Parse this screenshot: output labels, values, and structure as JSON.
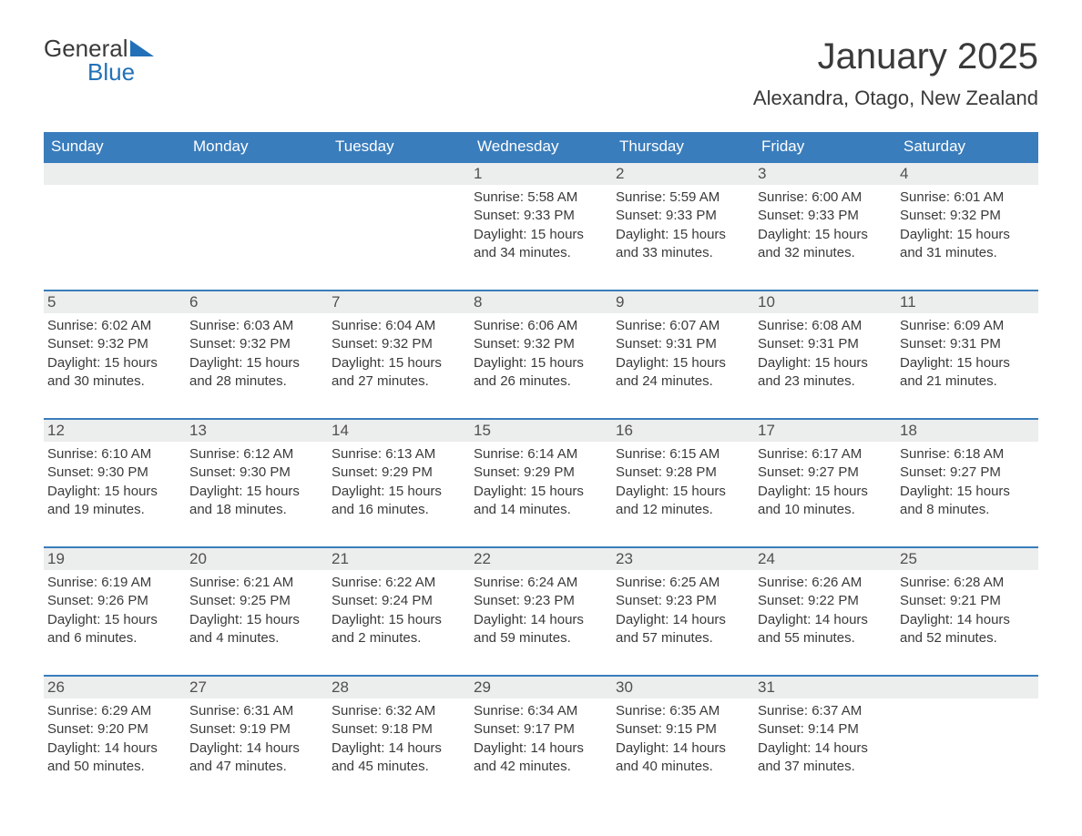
{
  "logo": {
    "line1": "General",
    "line2": "Blue"
  },
  "title": "January 2025",
  "location": "Alexandra, Otago, New Zealand",
  "colors": {
    "header_bg": "#3a7dbc",
    "header_text": "#ffffff",
    "row_stripe": "#eceded",
    "border": "#3a7dbc",
    "text": "#3a3a3a",
    "logo_blue": "#2271b8",
    "background": "#ffffff"
  },
  "weekdays": [
    "Sunday",
    "Monday",
    "Tuesday",
    "Wednesday",
    "Thursday",
    "Friday",
    "Saturday"
  ],
  "weeks": [
    [
      null,
      null,
      null,
      {
        "day": "1",
        "sunrise": "Sunrise: 5:58 AM",
        "sunset": "Sunset: 9:33 PM",
        "daylight1": "Daylight: 15 hours",
        "daylight2": "and 34 minutes."
      },
      {
        "day": "2",
        "sunrise": "Sunrise: 5:59 AM",
        "sunset": "Sunset: 9:33 PM",
        "daylight1": "Daylight: 15 hours",
        "daylight2": "and 33 minutes."
      },
      {
        "day": "3",
        "sunrise": "Sunrise: 6:00 AM",
        "sunset": "Sunset: 9:33 PM",
        "daylight1": "Daylight: 15 hours",
        "daylight2": "and 32 minutes."
      },
      {
        "day": "4",
        "sunrise": "Sunrise: 6:01 AM",
        "sunset": "Sunset: 9:32 PM",
        "daylight1": "Daylight: 15 hours",
        "daylight2": "and 31 minutes."
      }
    ],
    [
      {
        "day": "5",
        "sunrise": "Sunrise: 6:02 AM",
        "sunset": "Sunset: 9:32 PM",
        "daylight1": "Daylight: 15 hours",
        "daylight2": "and 30 minutes."
      },
      {
        "day": "6",
        "sunrise": "Sunrise: 6:03 AM",
        "sunset": "Sunset: 9:32 PM",
        "daylight1": "Daylight: 15 hours",
        "daylight2": "and 28 minutes."
      },
      {
        "day": "7",
        "sunrise": "Sunrise: 6:04 AM",
        "sunset": "Sunset: 9:32 PM",
        "daylight1": "Daylight: 15 hours",
        "daylight2": "and 27 minutes."
      },
      {
        "day": "8",
        "sunrise": "Sunrise: 6:06 AM",
        "sunset": "Sunset: 9:32 PM",
        "daylight1": "Daylight: 15 hours",
        "daylight2": "and 26 minutes."
      },
      {
        "day": "9",
        "sunrise": "Sunrise: 6:07 AM",
        "sunset": "Sunset: 9:31 PM",
        "daylight1": "Daylight: 15 hours",
        "daylight2": "and 24 minutes."
      },
      {
        "day": "10",
        "sunrise": "Sunrise: 6:08 AM",
        "sunset": "Sunset: 9:31 PM",
        "daylight1": "Daylight: 15 hours",
        "daylight2": "and 23 minutes."
      },
      {
        "day": "11",
        "sunrise": "Sunrise: 6:09 AM",
        "sunset": "Sunset: 9:31 PM",
        "daylight1": "Daylight: 15 hours",
        "daylight2": "and 21 minutes."
      }
    ],
    [
      {
        "day": "12",
        "sunrise": "Sunrise: 6:10 AM",
        "sunset": "Sunset: 9:30 PM",
        "daylight1": "Daylight: 15 hours",
        "daylight2": "and 19 minutes."
      },
      {
        "day": "13",
        "sunrise": "Sunrise: 6:12 AM",
        "sunset": "Sunset: 9:30 PM",
        "daylight1": "Daylight: 15 hours",
        "daylight2": "and 18 minutes."
      },
      {
        "day": "14",
        "sunrise": "Sunrise: 6:13 AM",
        "sunset": "Sunset: 9:29 PM",
        "daylight1": "Daylight: 15 hours",
        "daylight2": "and 16 minutes."
      },
      {
        "day": "15",
        "sunrise": "Sunrise: 6:14 AM",
        "sunset": "Sunset: 9:29 PM",
        "daylight1": "Daylight: 15 hours",
        "daylight2": "and 14 minutes."
      },
      {
        "day": "16",
        "sunrise": "Sunrise: 6:15 AM",
        "sunset": "Sunset: 9:28 PM",
        "daylight1": "Daylight: 15 hours",
        "daylight2": "and 12 minutes."
      },
      {
        "day": "17",
        "sunrise": "Sunrise: 6:17 AM",
        "sunset": "Sunset: 9:27 PM",
        "daylight1": "Daylight: 15 hours",
        "daylight2": "and 10 minutes."
      },
      {
        "day": "18",
        "sunrise": "Sunrise: 6:18 AM",
        "sunset": "Sunset: 9:27 PM",
        "daylight1": "Daylight: 15 hours",
        "daylight2": "and 8 minutes."
      }
    ],
    [
      {
        "day": "19",
        "sunrise": "Sunrise: 6:19 AM",
        "sunset": "Sunset: 9:26 PM",
        "daylight1": "Daylight: 15 hours",
        "daylight2": "and 6 minutes."
      },
      {
        "day": "20",
        "sunrise": "Sunrise: 6:21 AM",
        "sunset": "Sunset: 9:25 PM",
        "daylight1": "Daylight: 15 hours",
        "daylight2": "and 4 minutes."
      },
      {
        "day": "21",
        "sunrise": "Sunrise: 6:22 AM",
        "sunset": "Sunset: 9:24 PM",
        "daylight1": "Daylight: 15 hours",
        "daylight2": "and 2 minutes."
      },
      {
        "day": "22",
        "sunrise": "Sunrise: 6:24 AM",
        "sunset": "Sunset: 9:23 PM",
        "daylight1": "Daylight: 14 hours",
        "daylight2": "and 59 minutes."
      },
      {
        "day": "23",
        "sunrise": "Sunrise: 6:25 AM",
        "sunset": "Sunset: 9:23 PM",
        "daylight1": "Daylight: 14 hours",
        "daylight2": "and 57 minutes."
      },
      {
        "day": "24",
        "sunrise": "Sunrise: 6:26 AM",
        "sunset": "Sunset: 9:22 PM",
        "daylight1": "Daylight: 14 hours",
        "daylight2": "and 55 minutes."
      },
      {
        "day": "25",
        "sunrise": "Sunrise: 6:28 AM",
        "sunset": "Sunset: 9:21 PM",
        "daylight1": "Daylight: 14 hours",
        "daylight2": "and 52 minutes."
      }
    ],
    [
      {
        "day": "26",
        "sunrise": "Sunrise: 6:29 AM",
        "sunset": "Sunset: 9:20 PM",
        "daylight1": "Daylight: 14 hours",
        "daylight2": "and 50 minutes."
      },
      {
        "day": "27",
        "sunrise": "Sunrise: 6:31 AM",
        "sunset": "Sunset: 9:19 PM",
        "daylight1": "Daylight: 14 hours",
        "daylight2": "and 47 minutes."
      },
      {
        "day": "28",
        "sunrise": "Sunrise: 6:32 AM",
        "sunset": "Sunset: 9:18 PM",
        "daylight1": "Daylight: 14 hours",
        "daylight2": "and 45 minutes."
      },
      {
        "day": "29",
        "sunrise": "Sunrise: 6:34 AM",
        "sunset": "Sunset: 9:17 PM",
        "daylight1": "Daylight: 14 hours",
        "daylight2": "and 42 minutes."
      },
      {
        "day": "30",
        "sunrise": "Sunrise: 6:35 AM",
        "sunset": "Sunset: 9:15 PM",
        "daylight1": "Daylight: 14 hours",
        "daylight2": "and 40 minutes."
      },
      {
        "day": "31",
        "sunrise": "Sunrise: 6:37 AM",
        "sunset": "Sunset: 9:14 PM",
        "daylight1": "Daylight: 14 hours",
        "daylight2": "and 37 minutes."
      },
      null
    ]
  ]
}
